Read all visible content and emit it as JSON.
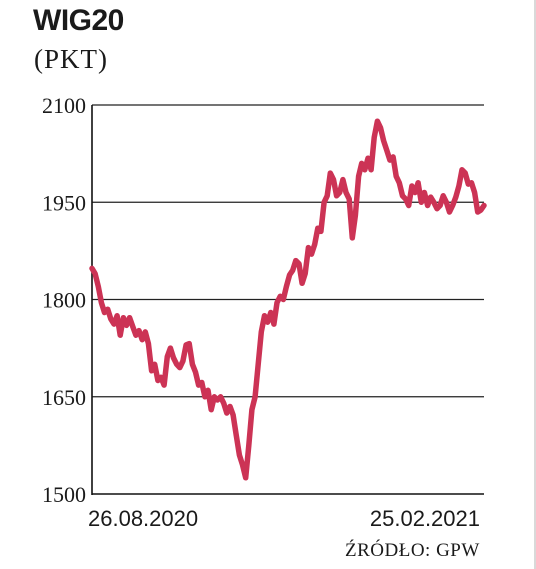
{
  "chart_data": {
    "type": "line",
    "title": "WIG20",
    "subtitle": "(PKT)",
    "source": "ŹRÓDŁO: GPW",
    "ylim": [
      1500,
      2100
    ],
    "y_ticks": [
      "2100",
      "1950",
      "1800",
      "1650",
      "1500"
    ],
    "y_tick_values": [
      2100,
      1950,
      1800,
      1650,
      1500
    ],
    "x_tick_labels": [
      "26.08.2020",
      "25.02.2021"
    ],
    "grid": "horizontal",
    "line_color": "#cc3355",
    "series": [
      {
        "values": [
          1848,
          1840,
          1820,
          1795,
          1780,
          1785,
          1770,
          1762,
          1775,
          1745,
          1772,
          1760,
          1772,
          1758,
          1745,
          1752,
          1738,
          1750,
          1732,
          1690,
          1700,
          1675,
          1680,
          1668,
          1712,
          1725,
          1710,
          1700,
          1695,
          1705,
          1730,
          1732,
          1700,
          1688,
          1668,
          1672,
          1650,
          1660,
          1630,
          1650,
          1645,
          1650,
          1640,
          1625,
          1635,
          1622,
          1590,
          1560,
          1545,
          1525,
          1575,
          1630,
          1650,
          1700,
          1750,
          1775,
          1765,
          1780,
          1762,
          1795,
          1805,
          1800,
          1820,
          1838,
          1845,
          1860,
          1855,
          1825,
          1840,
          1880,
          1870,
          1885,
          1910,
          1905,
          1950,
          1960,
          1995,
          1985,
          1960,
          1965,
          1985,
          1965,
          1955,
          1895,
          1930,
          1990,
          2010,
          2000,
          2018,
          2000,
          2050,
          2075,
          2065,
          2045,
          2030,
          2015,
          2020,
          1990,
          1980,
          1960,
          1955,
          1945,
          1975,
          1965,
          1980,
          1950,
          1965,
          1945,
          1958,
          1950,
          1940,
          1945,
          1960,
          1950,
          1935,
          1945,
          1958,
          1975,
          2000,
          1995,
          1978,
          1980,
          1965,
          1935,
          1938,
          1945
        ]
      }
    ]
  }
}
